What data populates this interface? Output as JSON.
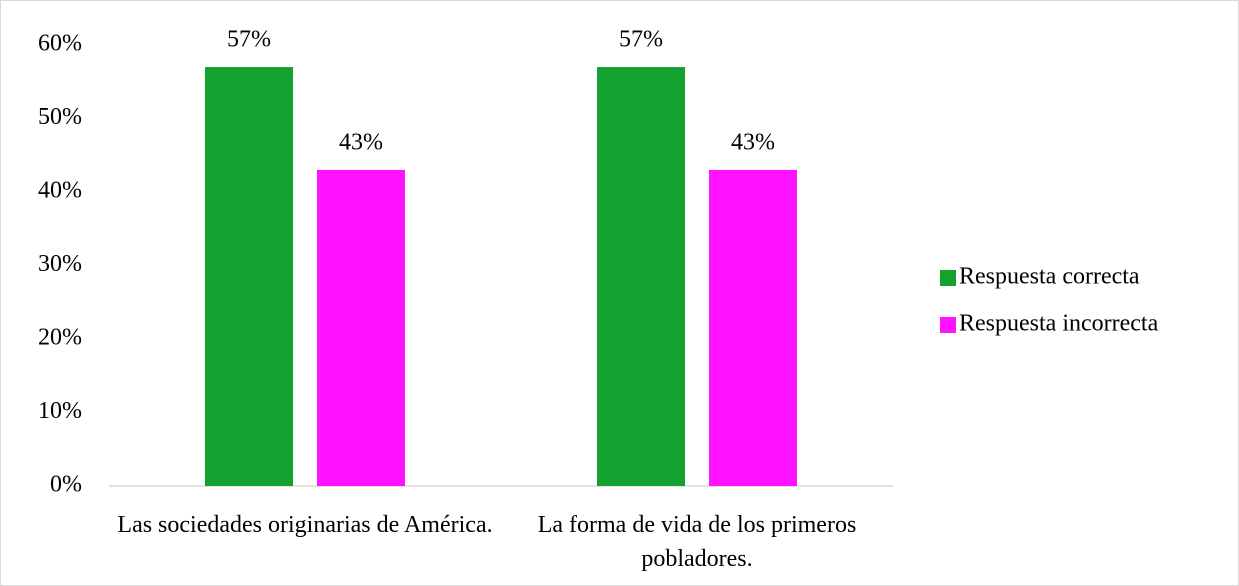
{
  "chart_data": {
    "type": "bar",
    "categories": [
      "Las sociedades originarias de América.",
      "La forma de vida de los primeros pobladores."
    ],
    "series": [
      {
        "name": "Respuesta correcta",
        "color": "#13a12f",
        "values": [
          57,
          57
        ],
        "value_labels": [
          "57%",
          "57%"
        ]
      },
      {
        "name": "Respuesta incorrecta",
        "color": "#ff12ff",
        "values": [
          43,
          43
        ],
        "value_labels": [
          "43%",
          "43%"
        ]
      }
    ],
    "ylim": [
      0,
      60
    ],
    "yticks": [
      {
        "value": 0,
        "label": "0%"
      },
      {
        "value": 10,
        "label": "10%"
      },
      {
        "value": 20,
        "label": "20%"
      },
      {
        "value": 30,
        "label": "30%"
      },
      {
        "value": 40,
        "label": "40%"
      },
      {
        "value": 50,
        "label": "50%"
      },
      {
        "value": 60,
        "label": "60%"
      }
    ],
    "grid": false,
    "legend": "right"
  }
}
